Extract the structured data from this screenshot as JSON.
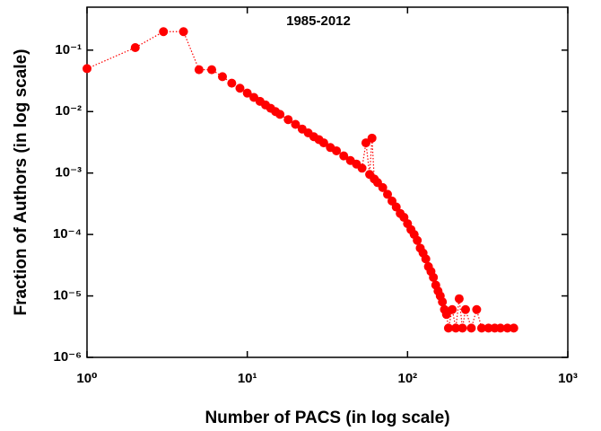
{
  "chart_data": {
    "type": "scatter",
    "title": "1985-2012",
    "x_label": "Number of PACS (in log scale)",
    "y_label": "Fraction of Authors (in log scale)",
    "xscale": "log",
    "yscale": "log",
    "color": "#ff0000",
    "linestyle": "dotted",
    "xlim": [
      1,
      1000
    ],
    "ylim": [
      1e-06,
      0.5
    ],
    "xticks": [
      {
        "value": 1,
        "label": "10⁰"
      },
      {
        "value": 10,
        "label": "10¹"
      },
      {
        "value": 100,
        "label": "10²"
      },
      {
        "value": 1000,
        "label": "10³"
      }
    ],
    "yticks": [
      {
        "value": 1e-06,
        "label": "10⁻⁶"
      },
      {
        "value": 1e-05,
        "label": "10⁻⁵"
      },
      {
        "value": 0.0001,
        "label": "10⁻⁴"
      },
      {
        "value": 0.001,
        "label": "10⁻³"
      },
      {
        "value": 0.01,
        "label": "10⁻²"
      },
      {
        "value": 0.1,
        "label": "10⁻¹"
      }
    ],
    "x": [
      1,
      2,
      3,
      4,
      5,
      6,
      7,
      8,
      9,
      10,
      11,
      12,
      13,
      14,
      15,
      16,
      18,
      20,
      22,
      24,
      26,
      28,
      30,
      33,
      36,
      40,
      44,
      48,
      52,
      55,
      58,
      60,
      62,
      65,
      70,
      75,
      80,
      85,
      90,
      95,
      100,
      105,
      110,
      115,
      120,
      125,
      130,
      135,
      140,
      145,
      150,
      155,
      160,
      165,
      170,
      175,
      180,
      190,
      200,
      210,
      220,
      230,
      250,
      270,
      290,
      320,
      350,
      380,
      420,
      460
    ],
    "values": [
      0.05,
      0.11,
      0.2,
      0.2,
      0.048,
      0.048,
      0.037,
      0.029,
      0.024,
      0.02,
      0.017,
      0.0147,
      0.0128,
      0.0113,
      0.01,
      0.009,
      0.0074,
      0.0062,
      0.0052,
      0.0045,
      0.0039,
      0.0035,
      0.0031,
      0.0026,
      0.0023,
      0.0019,
      0.0016,
      0.0014,
      0.0012,
      0.0031,
      0.00095,
      0.0037,
      0.0008,
      0.0007,
      0.00058,
      0.00045,
      0.00035,
      0.00028,
      0.00022,
      0.00019,
      0.00015,
      0.00012,
      0.0001,
      8e-05,
      6e-05,
      5e-05,
      4e-05,
      3e-05,
      2.5e-05,
      2e-05,
      1.5e-05,
      1.2e-05,
      1e-05,
      8e-06,
      6e-06,
      5e-06,
      3e-06,
      6e-06,
      3e-06,
      9e-06,
      3e-06,
      6e-06,
      3e-06,
      6e-06,
      3e-06,
      3e-06,
      3e-06,
      3e-06,
      3e-06,
      3e-06
    ]
  }
}
